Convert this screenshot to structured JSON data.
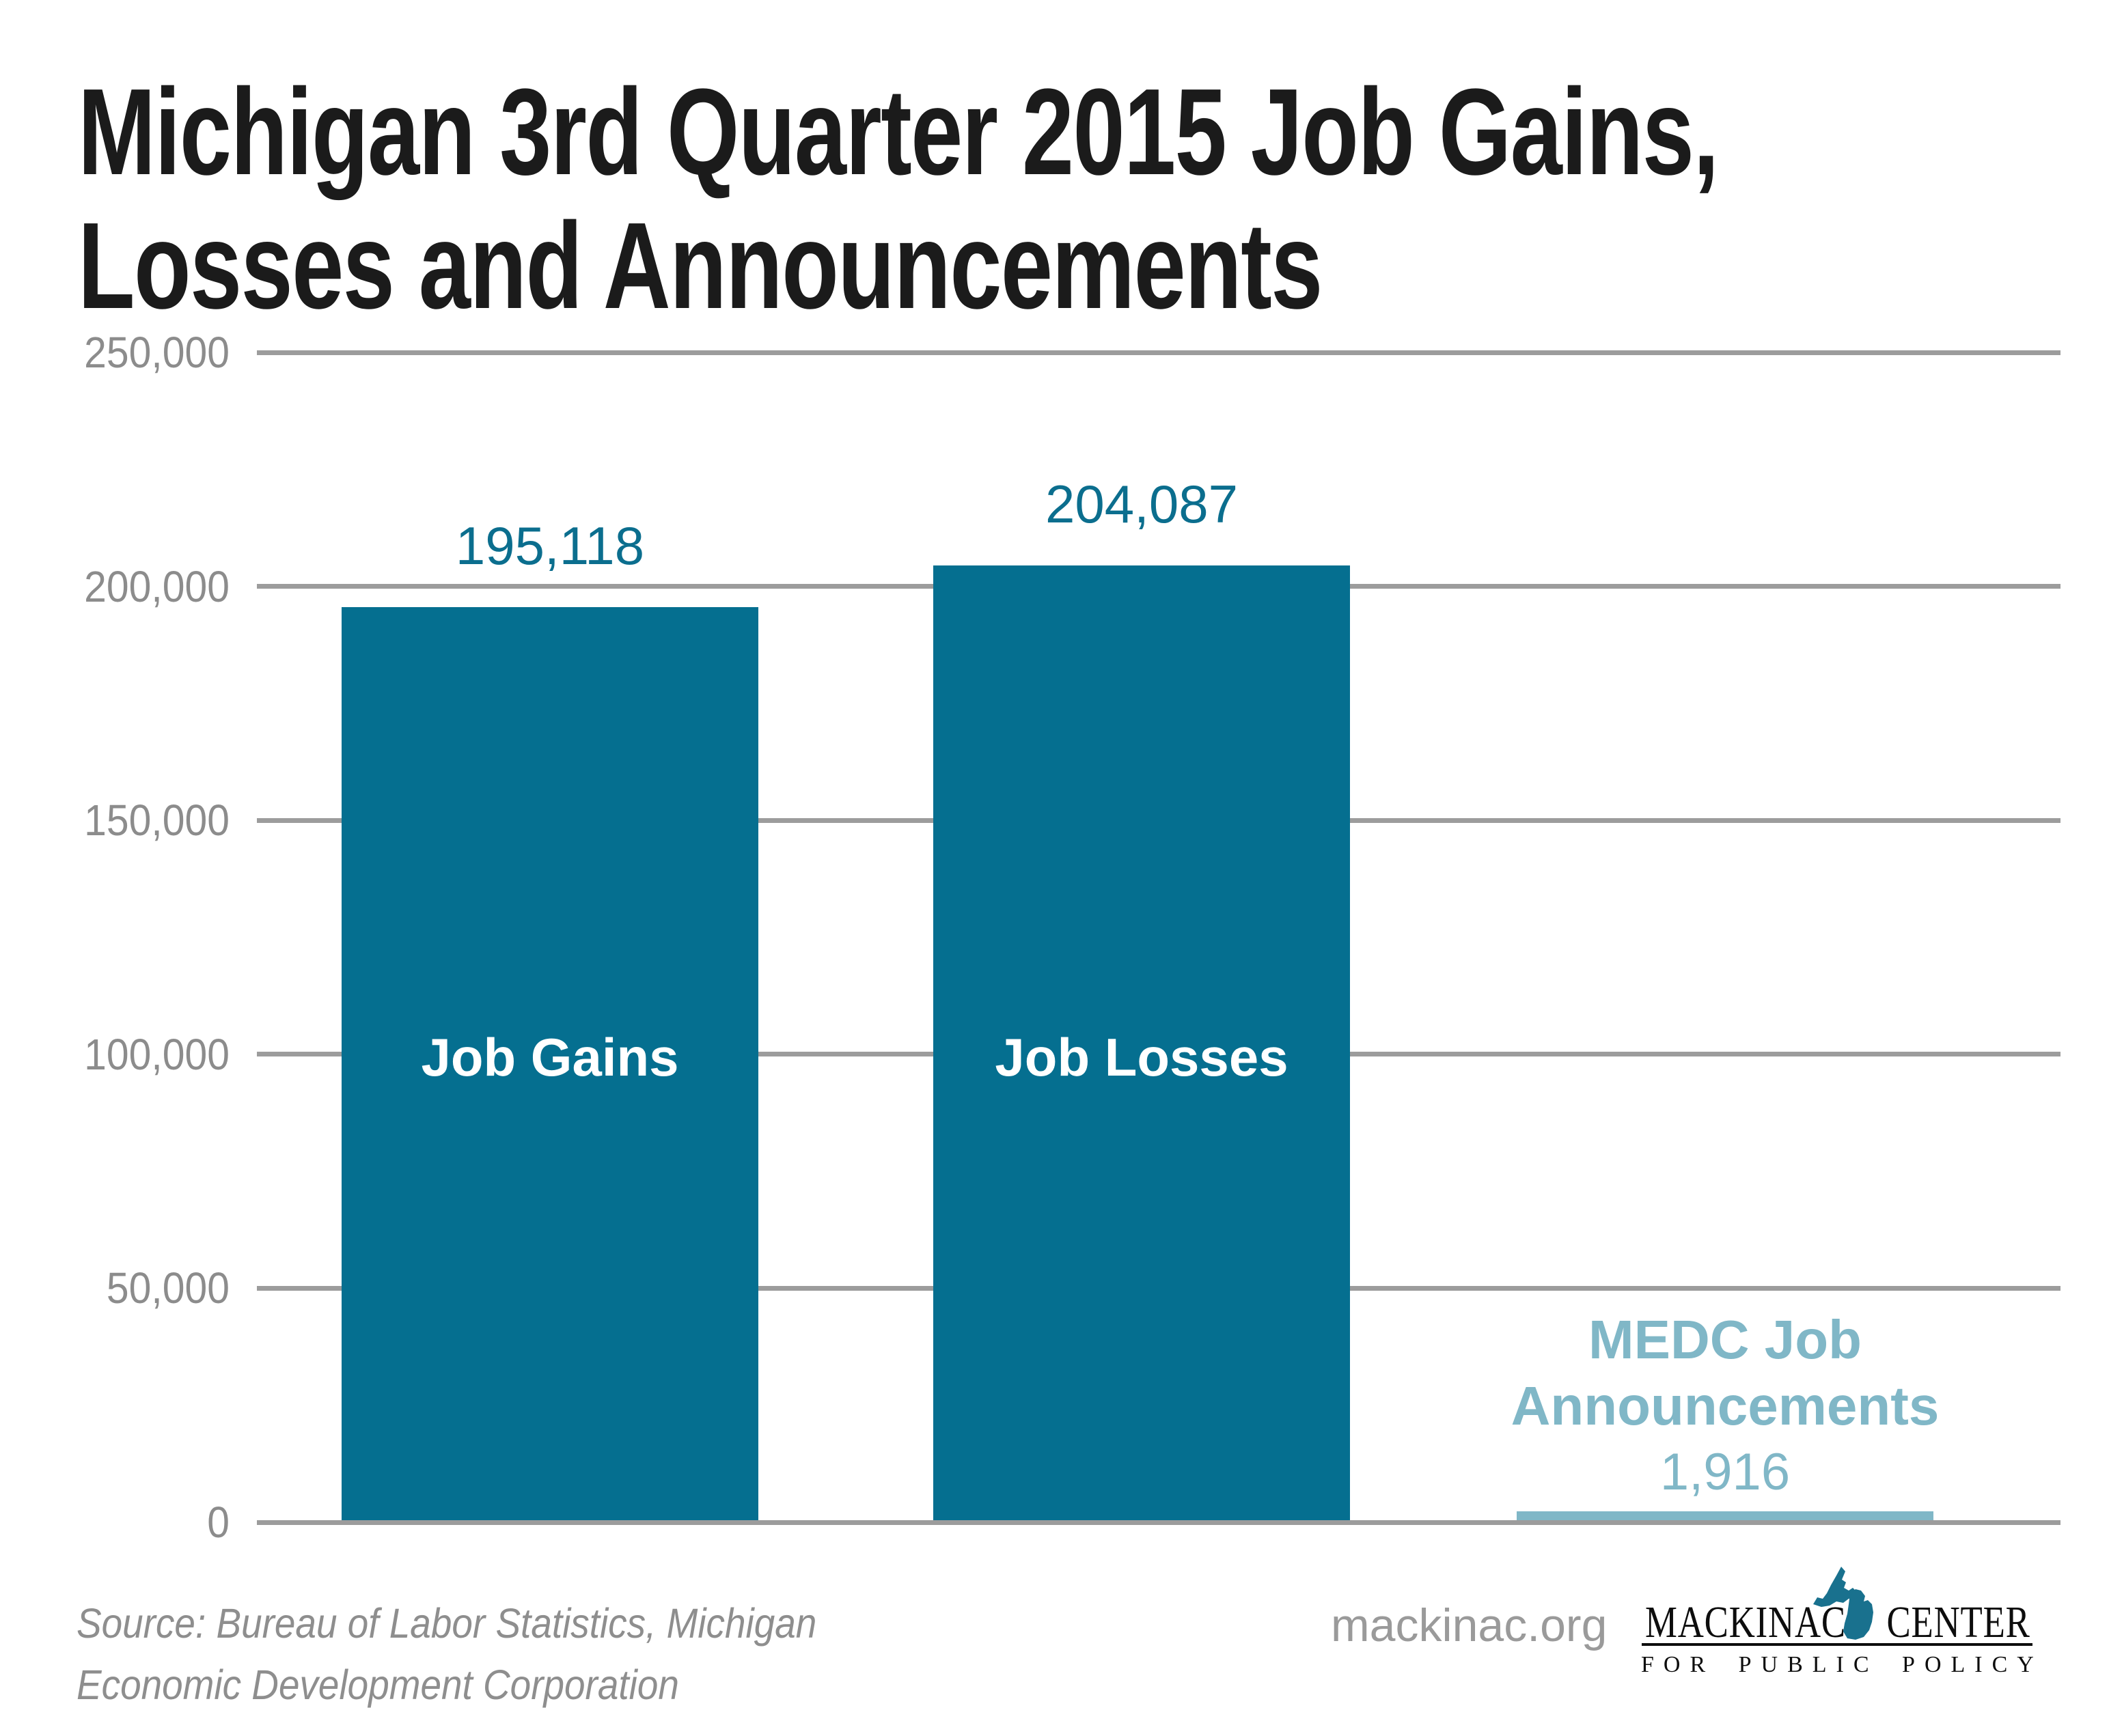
{
  "title": {
    "line1": "Michigan 3rd Quarter 2015 Job Gains,",
    "line2": "Losses and Announcements"
  },
  "chart_data": {
    "type": "bar",
    "title": "Michigan 3rd Quarter 2015 Job Gains, Losses and Announcements",
    "xlabel": "",
    "ylabel": "",
    "ylim": [
      0,
      250000
    ],
    "ytick_step": 50000,
    "grid": true,
    "legend": "none",
    "categories": [
      "Job Gains",
      "Job Losses",
      "MEDC Job Announcements"
    ],
    "values": [
      195118,
      204087,
      1916
    ],
    "yticks": [
      {
        "value": 250000,
        "label": "250,000"
      },
      {
        "value": 200000,
        "label": "200,000"
      },
      {
        "value": 150000,
        "label": "150,000"
      },
      {
        "value": 100000,
        "label": "100,000"
      },
      {
        "value": 50000,
        "label": "50,000"
      },
      {
        "value": 0,
        "label": "0"
      }
    ],
    "bars": [
      {
        "category": "Job Gains",
        "value": 195118,
        "value_label": "195,118",
        "color": "#056F90",
        "label_style": "inside"
      },
      {
        "category": "Job Losses",
        "value": 204087,
        "value_label": "204,087",
        "color": "#056F90",
        "label_style": "inside"
      },
      {
        "category": "MEDC Job Announcements",
        "category_lines": [
          "MEDC Job",
          "Announcements"
        ],
        "value": 1916,
        "value_label": "1,916",
        "color": "#80B7C7",
        "label_style": "stacked-above"
      }
    ]
  },
  "colors": {
    "bar_teal": "#056F90",
    "bar_light_blue": "#80B7C7",
    "value_label_teal": "#0B6E8E",
    "announcement_text": "#80B7C7",
    "gridline": "#9C9C9C",
    "tick_label": "#8C8C8C",
    "title_text": "#1B1B1B",
    "source_text": "#8E8E8E",
    "website_text": "#9A9A9A",
    "logo_text": "#0D0D0D",
    "michigan_icon": "#19718E"
  },
  "footer": {
    "source_line1": "Source: Bureau of Labor Statistics, Michigan",
    "source_line2": "Economic Development Corporation",
    "website": "mackinac.org",
    "logo": {
      "word1": "MACKINAC",
      "word2": "CENTER",
      "tagline": "FOR PUBLIC POLICY"
    }
  }
}
